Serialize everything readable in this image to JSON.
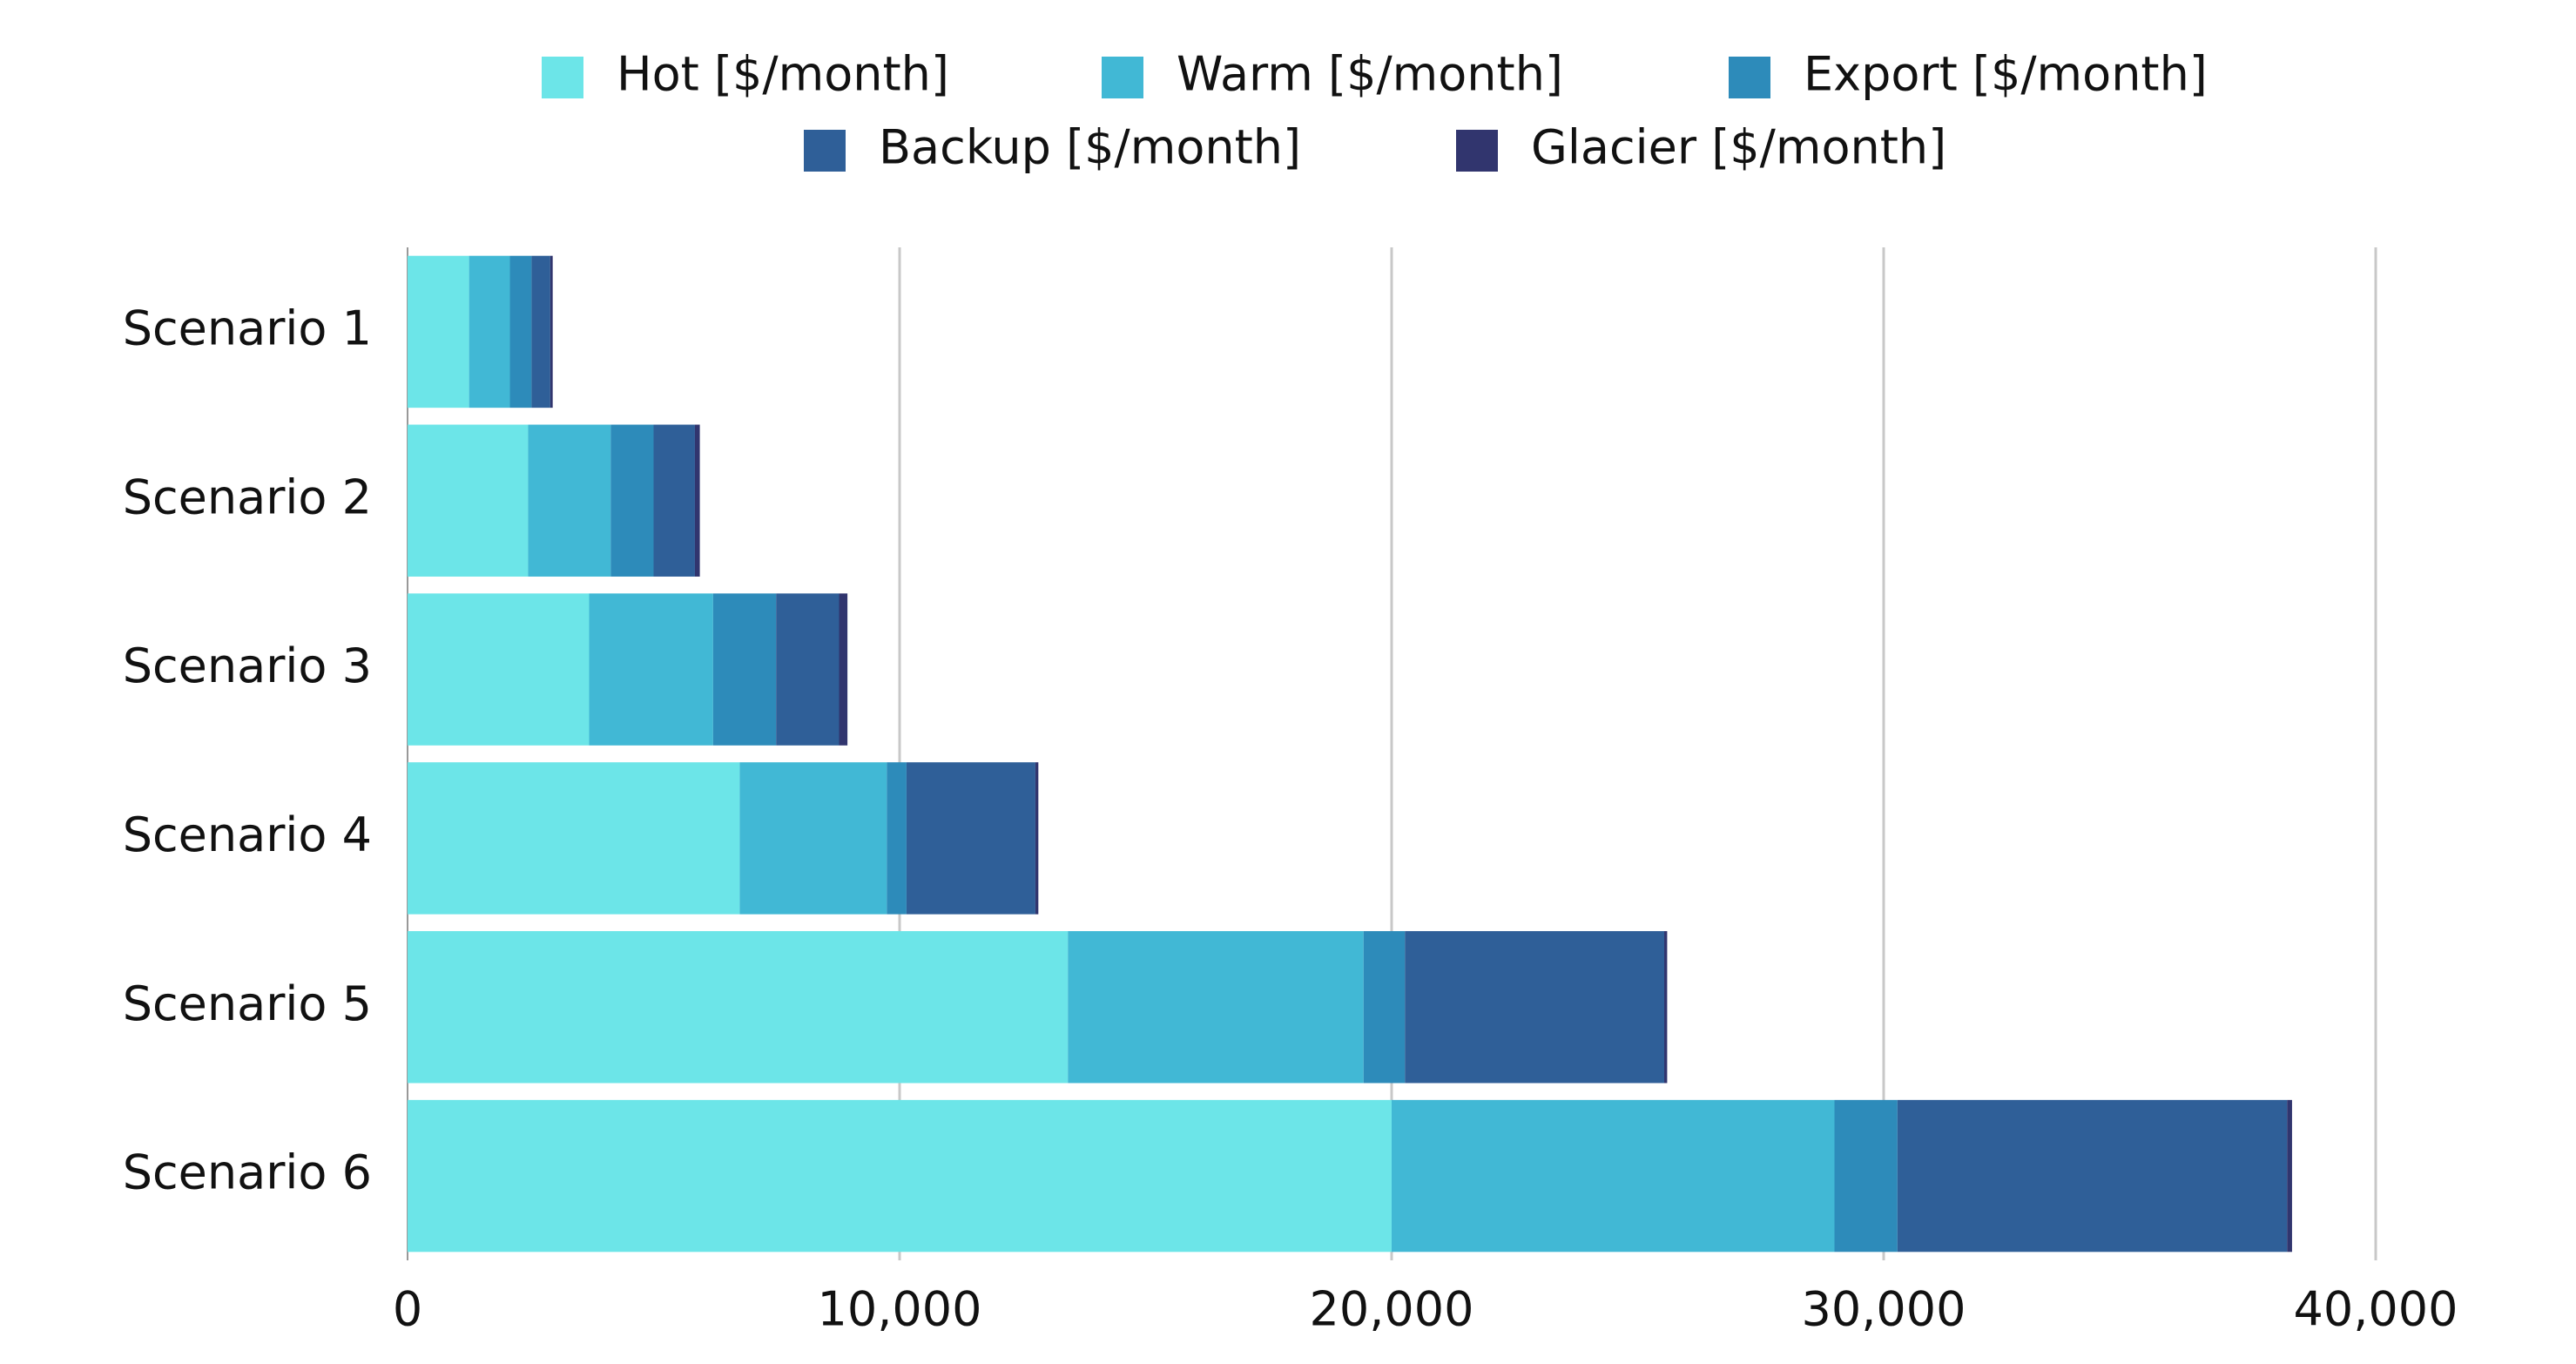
{
  "chart_data": {
    "type": "stacked-bar-horizontal",
    "categories": [
      "Scenario 1",
      "Scenario 2",
      "Scenario 3",
      "Scenario 4",
      "Scenario 5",
      "Scenario 6"
    ],
    "series": [
      {
        "name": "Hot [$/month]",
        "color": "#6ce5e8",
        "values": [
          1250,
          2450,
          3690,
          6750,
          13420,
          20000
        ]
      },
      {
        "name": "Warm [$/month]",
        "color": "#41b8d5",
        "values": [
          830,
          1680,
          2520,
          2990,
          6010,
          9000
        ]
      },
      {
        "name": "Export [$/month]",
        "color": "#2d8bba",
        "values": [
          440,
          870,
          1280,
          400,
          840,
          1280
        ]
      },
      {
        "name": "Backup [$/month]",
        "color": "#2f5f98",
        "values": [
          380,
          840,
          1280,
          2620,
          5270,
          7920
        ]
      },
      {
        "name": "Glacier [$/month]",
        "color": "#31356e",
        "values": [
          50,
          100,
          170,
          60,
          60,
          100
        ]
      }
    ],
    "xlim": [
      0,
      40000
    ],
    "xticks": [
      0,
      {
        "value": 10000,
        "label": "10,000"
      },
      {
        "value": 20000,
        "label": "20,000"
      },
      {
        "value": 30000,
        "label": "30,000"
      },
      {
        "value": 40000,
        "label": "40,000"
      }
    ],
    "grid": true,
    "legend": "top"
  }
}
